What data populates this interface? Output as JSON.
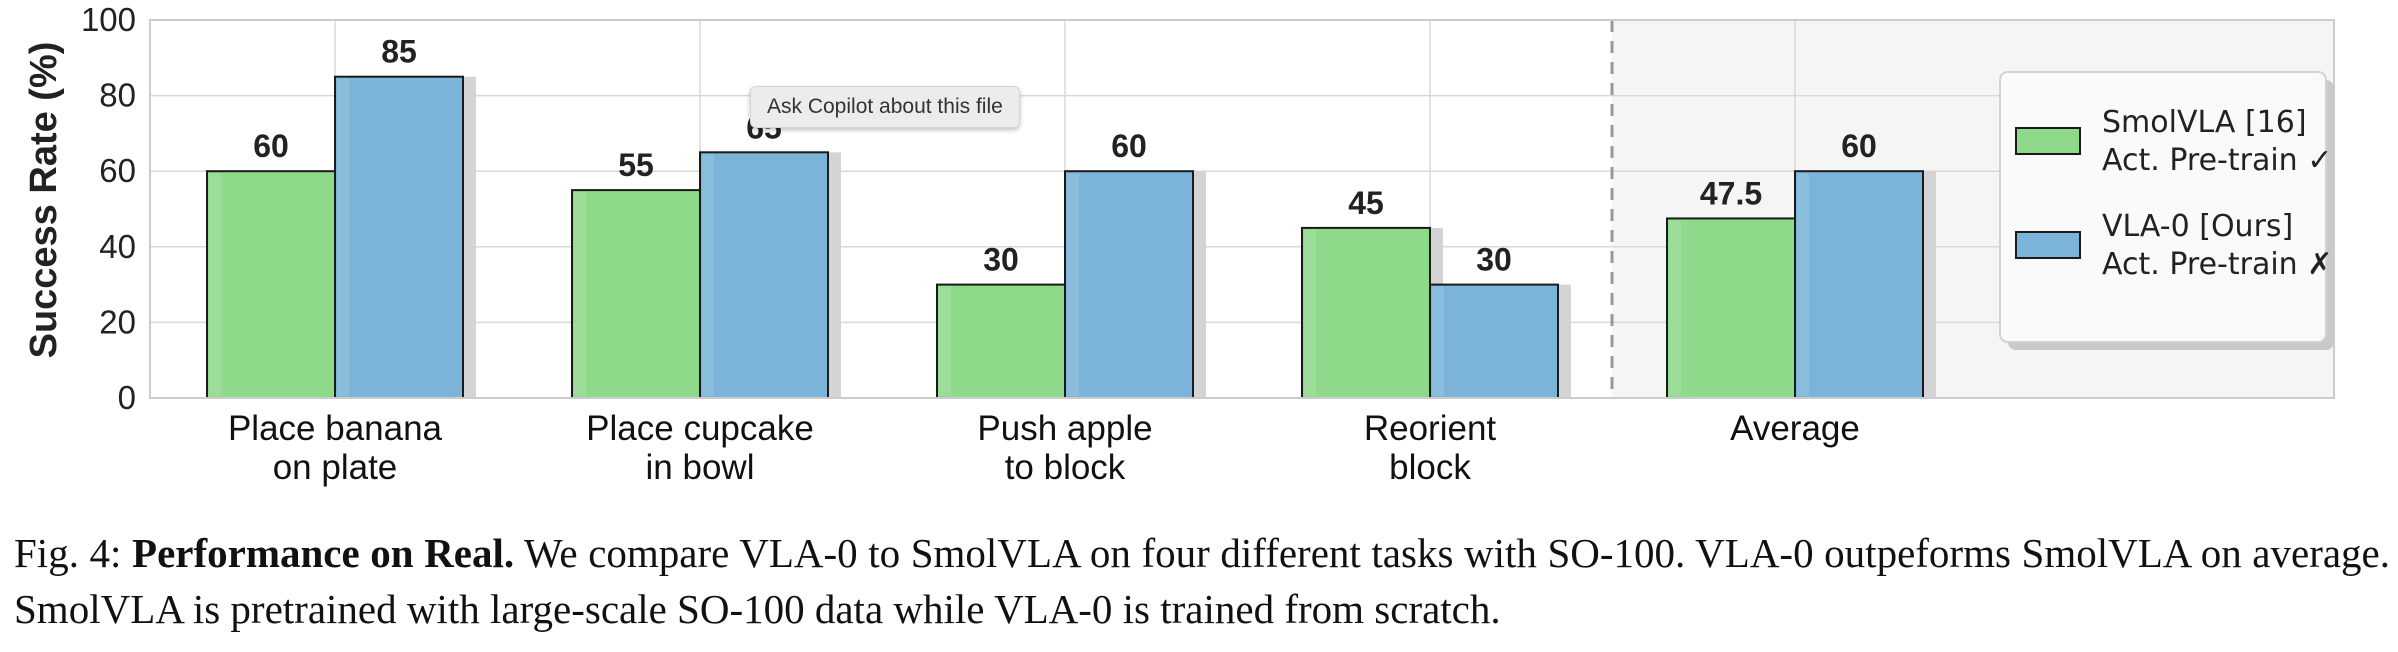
{
  "chart_data": {
    "type": "bar",
    "ylabel": "Success Rate (%)",
    "ylim": [
      0,
      100
    ],
    "yticks": [
      0,
      20,
      40,
      60,
      80,
      100
    ],
    "grid": true,
    "categories": [
      [
        "Place banana",
        "on plate"
      ],
      [
        "Place cupcake",
        "in bowl"
      ],
      [
        "Push apple",
        "to block"
      ],
      [
        "Reorient",
        "block"
      ],
      [
        "Average"
      ]
    ],
    "series": [
      {
        "name": "SmolVLA [16]",
        "name_line2": "Act. Pre-train ✓",
        "color": "#8fd98b",
        "values": [
          60,
          55,
          30,
          45,
          47.5
        ],
        "labels": [
          "60",
          "55",
          "30",
          "45",
          "47.5"
        ]
      },
      {
        "name": "VLA-0 [Ours]",
        "name_line2": "Act. Pre-train ✗",
        "color": "#7bb4d8",
        "values": [
          85,
          65,
          60,
          30,
          60
        ],
        "labels": [
          "85",
          "65",
          "60",
          "30",
          "60"
        ]
      }
    ],
    "legend_position": "right",
    "average_separator": true,
    "average_shaded": true
  },
  "tooltip": {
    "text": "Ask Copilot about this file"
  },
  "caption": {
    "prefix": "Fig. 4: ",
    "bold": "Performance on Real.",
    "text": " We compare VLA-0 to SmolVLA on four different tasks with SO-100. VLA-0 outpeforms SmolVLA on average. SmolVLA is pretrained with large-scale SO-100 data while VLA-0 is trained from scratch."
  }
}
